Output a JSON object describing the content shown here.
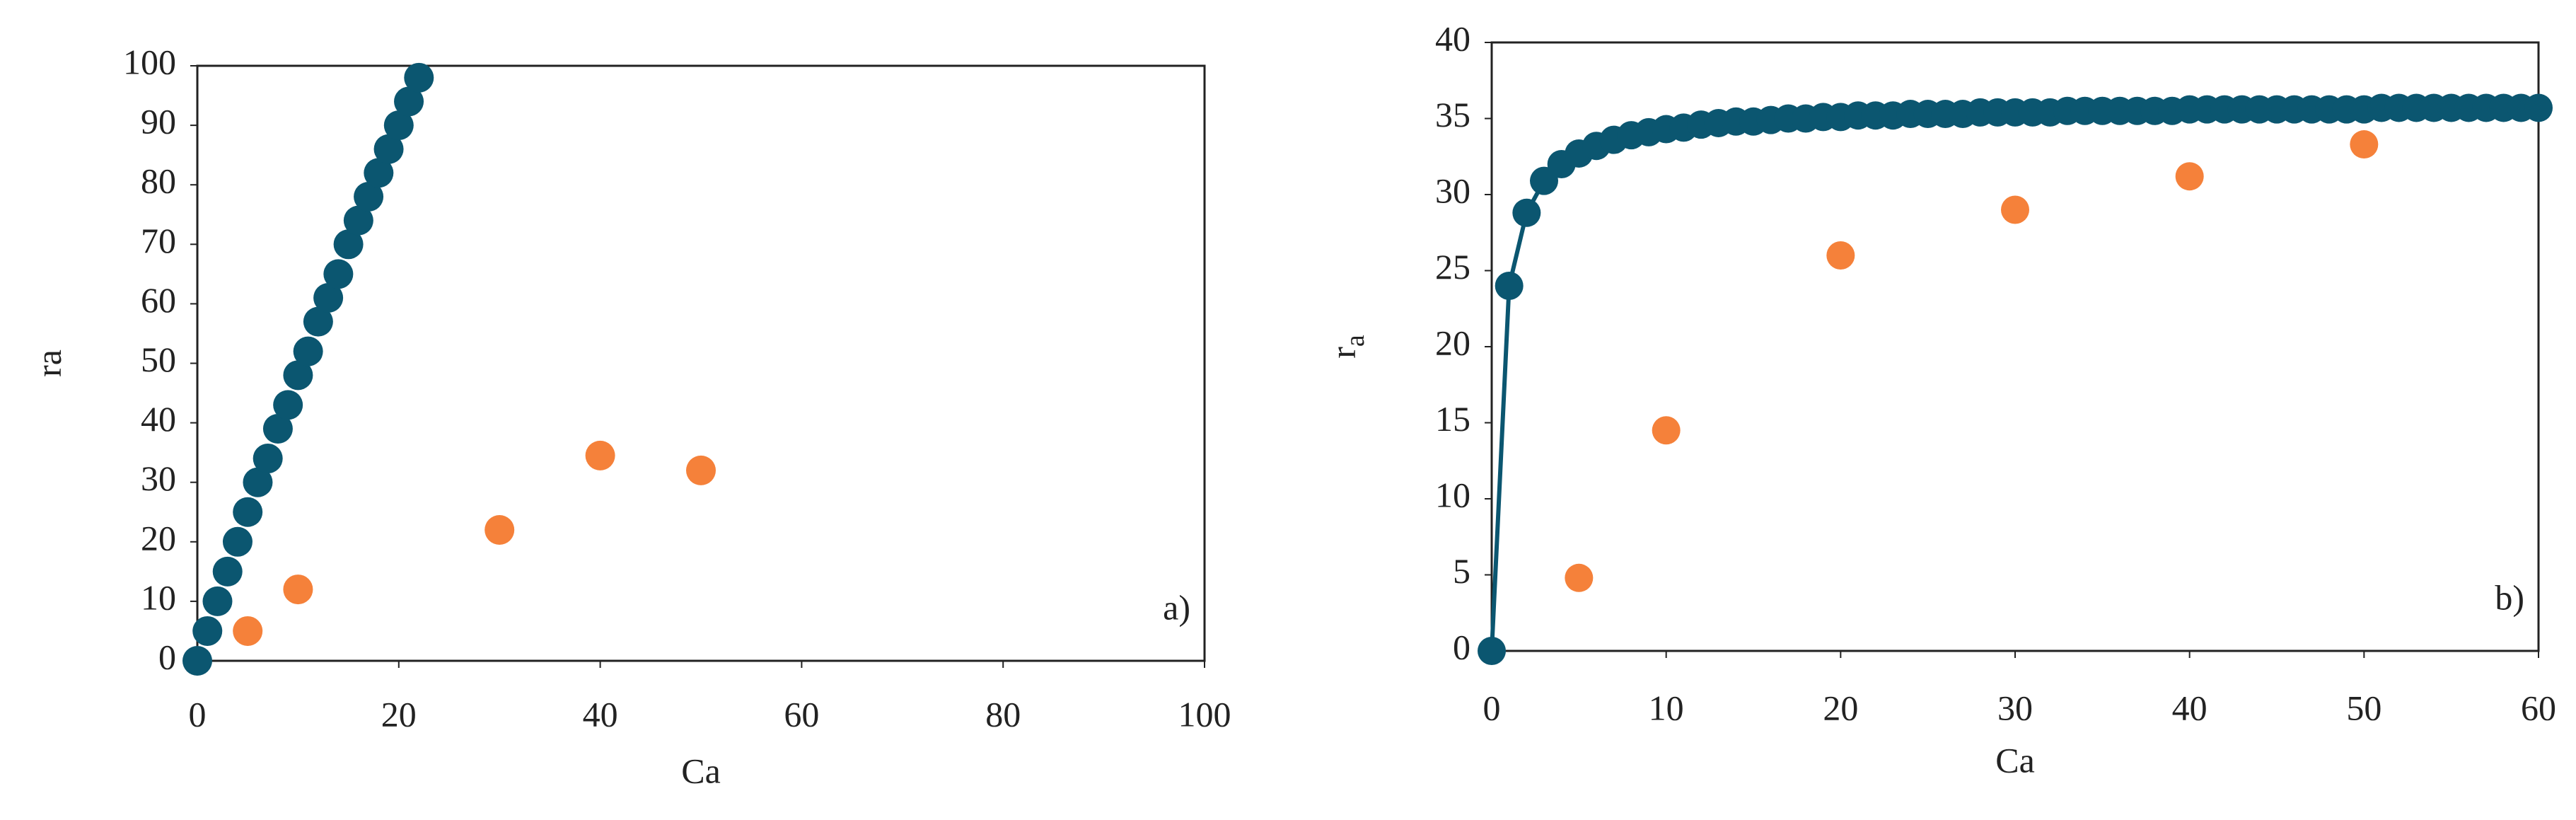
{
  "chart_data": [
    {
      "type": "scatter",
      "xlabel": "Ca",
      "ylabel": "ra",
      "annotation": "a)",
      "xlim": [
        0,
        100
      ],
      "xticks": [
        0,
        20,
        40,
        60,
        80,
        100
      ],
      "ylim": [
        0,
        100
      ],
      "yticks": [
        0,
        10,
        20,
        30,
        40,
        50,
        60,
        70,
        80,
        90,
        100
      ],
      "grid": false,
      "series": [
        {
          "color": "#0b5670",
          "line": false,
          "x": [
            0,
            1,
            2,
            3,
            4,
            5,
            6,
            7,
            8,
            9,
            10,
            11,
            12,
            13,
            14,
            15,
            16,
            17,
            18,
            19,
            20,
            21,
            22
          ],
          "values": [
            0,
            5,
            10,
            15,
            20,
            25,
            30,
            34,
            39,
            43,
            48,
            52,
            57,
            61,
            65,
            70,
            74,
            78,
            82,
            86,
            90,
            94,
            98
          ]
        },
        {
          "color": "#f5813a",
          "line": false,
          "x": [
            5,
            10,
            30,
            40,
            50
          ],
          "values": [
            5,
            12,
            22,
            34.5,
            32
          ]
        }
      ]
    },
    {
      "type": "scatter",
      "xlabel": "Ca",
      "ylabel": "r",
      "ylabel_sub": "a",
      "annotation": "b)",
      "xlim": [
        0,
        60
      ],
      "xticks": [
        0,
        10,
        20,
        30,
        40,
        50,
        60
      ],
      "ylim": [
        0,
        40
      ],
      "yticks": [
        0,
        5,
        10,
        15,
        20,
        25,
        30,
        35,
        40
      ],
      "grid": false,
      "series": [
        {
          "color": "#0b5670",
          "line": true,
          "x": [
            0,
            1,
            2,
            3,
            4,
            5,
            6,
            7,
            8,
            9,
            10,
            11,
            12,
            13,
            14,
            15,
            16,
            17,
            18,
            19,
            20,
            21,
            22,
            23,
            24,
            25,
            26,
            27,
            28,
            29,
            30,
            31,
            32,
            33,
            34,
            35,
            36,
            37,
            38,
            39,
            40,
            41,
            42,
            43,
            44,
            45,
            46,
            47,
            48,
            49,
            50,
            51,
            52,
            53,
            54,
            55,
            56,
            57,
            58,
            59,
            60
          ],
          "values": [
            0,
            24.0,
            28.8,
            30.9,
            32.0,
            32.7,
            33.2,
            33.6,
            33.9,
            34.1,
            34.3,
            34.4,
            34.6,
            34.7,
            34.8,
            34.8,
            34.9,
            35.0,
            35.0,
            35.1,
            35.1,
            35.2,
            35.2,
            35.2,
            35.3,
            35.3,
            35.3,
            35.3,
            35.4,
            35.4,
            35.4,
            35.4,
            35.4,
            35.5,
            35.5,
            35.5,
            35.5,
            35.5,
            35.5,
            35.5,
            35.6,
            35.6,
            35.6,
            35.6,
            35.6,
            35.6,
            35.6,
            35.6,
            35.6,
            35.6,
            35.6,
            35.7,
            35.7,
            35.7,
            35.7,
            35.7,
            35.7,
            35.7,
            35.7,
            35.7,
            35.7
          ]
        },
        {
          "color": "#f5813a",
          "line": false,
          "x": [
            5,
            10,
            20,
            30,
            40,
            50
          ],
          "values": [
            4.8,
            14.5,
            26,
            29,
            31.2,
            33.3
          ]
        }
      ]
    }
  ]
}
